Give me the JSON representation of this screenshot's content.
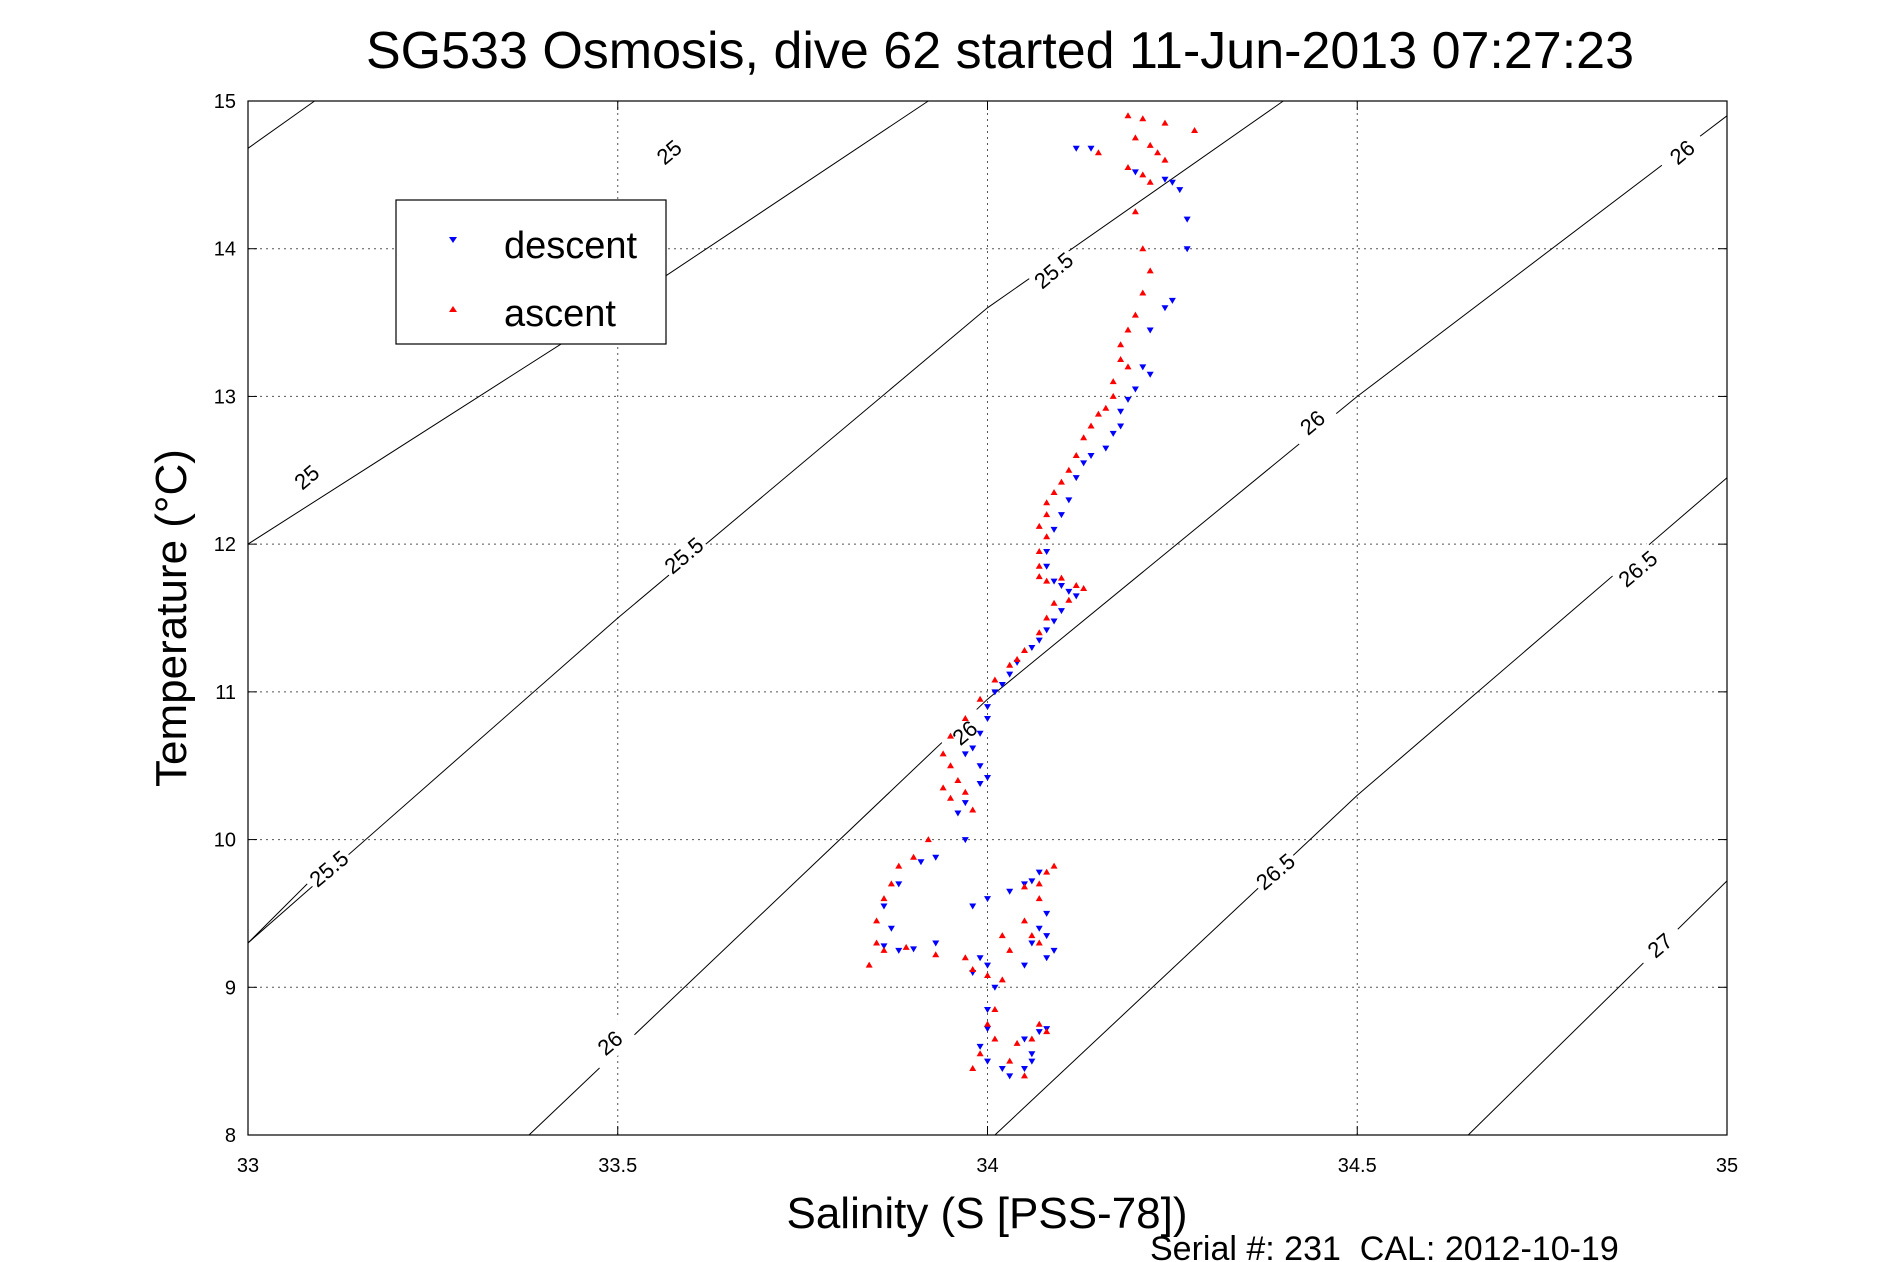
{
  "chart_data": {
    "type": "scatter",
    "title": "SG533 Osmosis, dive 62 started 11-Jun-2013 07:27:23",
    "xlabel": "Salinity (S [PSS-78])",
    "ylabel": "Temperature (°C)",
    "xlim": [
      33,
      35
    ],
    "ylim": [
      8,
      15
    ],
    "xticks": [
      "33",
      "33.5",
      "34",
      "34.5",
      "35"
    ],
    "yticks": [
      "8",
      "9",
      "10",
      "11",
      "12",
      "13",
      "14",
      "15"
    ],
    "grid": true,
    "legend_position": "top-left",
    "footer": "Serial #: 231  CAL: 2012-10-19",
    "contours": [
      {
        "label": "25",
        "points": [
          [
            33,
            14.68
          ],
          [
            33.09,
            15
          ]
        ],
        "labels_at": [
          [
            33.57,
            14.65
          ]
        ]
      },
      {
        "label": "25",
        "points": [
          [
            33,
            12.0
          ],
          [
            33.5,
            13.6
          ],
          [
            33.92,
            15
          ]
        ],
        "labels_at": [
          [
            33.08,
            12.45
          ]
        ]
      },
      {
        "label": "25.5",
        "points": [
          [
            33,
            9.3
          ],
          [
            33.5,
            11.5
          ],
          [
            34,
            13.6
          ],
          [
            34.4,
            15
          ]
        ],
        "labels_at": [
          [
            33.59,
            11.92
          ],
          [
            34.09,
            13.85
          ]
        ]
      },
      {
        "label": "25.5",
        "points": [
          [
            33,
            9.3
          ],
          [
            33.08,
            9.7
          ]
        ],
        "labels_at": [
          [
            33.11,
            9.8
          ]
        ]
      },
      {
        "label": "26",
        "points": [
          [
            33.38,
            8
          ],
          [
            34,
            10.95
          ],
          [
            34.5,
            13.0
          ],
          [
            35,
            14.9
          ]
        ],
        "labels_at": [
          [
            33.49,
            8.62
          ],
          [
            33.97,
            10.72
          ],
          [
            34.44,
            12.82
          ],
          [
            34.94,
            14.65
          ]
        ]
      },
      {
        "label": "26.5",
        "points": [
          [
            34.01,
            8
          ],
          [
            34.5,
            10.3
          ],
          [
            35,
            12.45
          ]
        ],
        "labels_at": [
          [
            34.39,
            9.78
          ],
          [
            34.88,
            11.83
          ]
        ]
      },
      {
        "label": "27",
        "points": [
          [
            34.65,
            8
          ],
          [
            35,
            9.72
          ]
        ],
        "labels_at": [
          [
            34.91,
            9.28
          ]
        ]
      }
    ],
    "series": [
      {
        "name": "descent",
        "marker": "triangle-down",
        "color": "#0000ff",
        "points": [
          [
            34.12,
            14.68
          ],
          [
            34.14,
            14.68
          ],
          [
            34.2,
            14.52
          ],
          [
            34.24,
            14.47
          ],
          [
            34.25,
            14.45
          ],
          [
            34.27,
            14.2
          ],
          [
            34.26,
            14.4
          ],
          [
            34.27,
            14.0
          ],
          [
            34.25,
            13.65
          ],
          [
            34.24,
            13.6
          ],
          [
            34.22,
            13.45
          ],
          [
            34.21,
            13.2
          ],
          [
            34.22,
            13.15
          ],
          [
            34.2,
            13.05
          ],
          [
            34.19,
            12.98
          ],
          [
            34.18,
            12.9
          ],
          [
            34.18,
            12.8
          ],
          [
            34.17,
            12.75
          ],
          [
            34.16,
            12.65
          ],
          [
            34.14,
            12.6
          ],
          [
            34.13,
            12.55
          ],
          [
            34.12,
            12.45
          ],
          [
            34.11,
            12.3
          ],
          [
            34.1,
            12.2
          ],
          [
            34.09,
            12.1
          ],
          [
            34.08,
            11.95
          ],
          [
            34.08,
            11.85
          ],
          [
            34.09,
            11.75
          ],
          [
            34.1,
            11.72
          ],
          [
            34.11,
            11.68
          ],
          [
            34.12,
            11.65
          ],
          [
            34.1,
            11.55
          ],
          [
            34.09,
            11.48
          ],
          [
            34.08,
            11.42
          ],
          [
            34.07,
            11.35
          ],
          [
            34.06,
            11.3
          ],
          [
            34.04,
            11.2
          ],
          [
            34.03,
            11.12
          ],
          [
            34.02,
            11.05
          ],
          [
            34.01,
            11.0
          ],
          [
            34.0,
            10.9
          ],
          [
            34.0,
            10.82
          ],
          [
            33.99,
            10.72
          ],
          [
            33.98,
            10.62
          ],
          [
            33.97,
            10.58
          ],
          [
            33.99,
            10.5
          ],
          [
            34.0,
            10.42
          ],
          [
            33.99,
            10.38
          ],
          [
            33.97,
            10.25
          ],
          [
            33.96,
            10.18
          ],
          [
            33.97,
            10.0
          ],
          [
            33.93,
            9.88
          ],
          [
            33.91,
            9.85
          ],
          [
            33.88,
            9.7
          ],
          [
            33.86,
            9.55
          ],
          [
            33.87,
            9.4
          ],
          [
            33.86,
            9.28
          ],
          [
            33.88,
            9.25
          ],
          [
            33.9,
            9.26
          ],
          [
            33.93,
            9.3
          ],
          [
            33.98,
            9.55
          ],
          [
            34.0,
            9.6
          ],
          [
            34.03,
            9.65
          ],
          [
            34.05,
            9.7
          ],
          [
            34.06,
            9.72
          ],
          [
            34.07,
            9.78
          ],
          [
            34.08,
            9.5
          ],
          [
            34.07,
            9.4
          ],
          [
            34.06,
            9.3
          ],
          [
            34.08,
            9.35
          ],
          [
            34.09,
            9.25
          ],
          [
            34.08,
            9.2
          ],
          [
            34.05,
            9.15
          ],
          [
            34.0,
            9.15
          ],
          [
            33.99,
            9.2
          ],
          [
            33.98,
            9.1
          ],
          [
            34.01,
            9.0
          ],
          [
            34.0,
            8.85
          ],
          [
            34.0,
            8.72
          ],
          [
            33.99,
            8.6
          ],
          [
            34.0,
            8.5
          ],
          [
            34.02,
            8.45
          ],
          [
            34.03,
            8.4
          ],
          [
            34.05,
            8.45
          ],
          [
            34.06,
            8.55
          ],
          [
            34.05,
            8.65
          ],
          [
            34.07,
            8.7
          ],
          [
            34.08,
            8.72
          ],
          [
            34.06,
            8.5
          ]
        ]
      },
      {
        "name": "ascent",
        "marker": "triangle-up",
        "color": "#ff0000",
        "points": [
          [
            34.19,
            14.9
          ],
          [
            34.21,
            14.88
          ],
          [
            34.24,
            14.85
          ],
          [
            34.28,
            14.8
          ],
          [
            34.2,
            14.75
          ],
          [
            34.22,
            14.7
          ],
          [
            34.23,
            14.65
          ],
          [
            34.24,
            14.6
          ],
          [
            34.15,
            14.65
          ],
          [
            34.19,
            14.55
          ],
          [
            34.21,
            14.5
          ],
          [
            34.22,
            14.45
          ],
          [
            34.2,
            14.25
          ],
          [
            34.21,
            14.0
          ],
          [
            34.22,
            13.85
          ],
          [
            34.21,
            13.7
          ],
          [
            34.2,
            13.55
          ],
          [
            34.19,
            13.45
          ],
          [
            34.18,
            13.35
          ],
          [
            34.18,
            13.25
          ],
          [
            34.19,
            13.2
          ],
          [
            34.17,
            13.1
          ],
          [
            34.17,
            13.0
          ],
          [
            34.16,
            12.92
          ],
          [
            34.15,
            12.88
          ],
          [
            34.14,
            12.8
          ],
          [
            34.13,
            12.72
          ],
          [
            34.12,
            12.6
          ],
          [
            34.11,
            12.5
          ],
          [
            34.1,
            12.42
          ],
          [
            34.09,
            12.35
          ],
          [
            34.08,
            12.28
          ],
          [
            34.08,
            12.2
          ],
          [
            34.07,
            12.12
          ],
          [
            34.08,
            12.05
          ],
          [
            34.07,
            11.95
          ],
          [
            34.07,
            11.85
          ],
          [
            34.07,
            11.78
          ],
          [
            34.08,
            11.75
          ],
          [
            34.1,
            11.77
          ],
          [
            34.12,
            11.72
          ],
          [
            34.13,
            11.7
          ],
          [
            34.11,
            11.62
          ],
          [
            34.09,
            11.6
          ],
          [
            34.08,
            11.5
          ],
          [
            34.07,
            11.4
          ],
          [
            34.05,
            11.28
          ],
          [
            34.04,
            11.22
          ],
          [
            34.03,
            11.18
          ],
          [
            34.01,
            11.08
          ],
          [
            33.99,
            10.95
          ],
          [
            33.97,
            10.82
          ],
          [
            33.95,
            10.7
          ],
          [
            33.94,
            10.58
          ],
          [
            33.95,
            10.5
          ],
          [
            33.96,
            10.4
          ],
          [
            33.94,
            10.35
          ],
          [
            33.95,
            10.28
          ],
          [
            33.97,
            10.32
          ],
          [
            33.98,
            10.2
          ],
          [
            33.92,
            10.0
          ],
          [
            33.9,
            9.88
          ],
          [
            33.88,
            9.82
          ],
          [
            33.87,
            9.7
          ],
          [
            33.86,
            9.6
          ],
          [
            33.85,
            9.45
          ],
          [
            33.85,
            9.3
          ],
          [
            33.84,
            9.15
          ],
          [
            33.86,
            9.25
          ],
          [
            33.89,
            9.27
          ],
          [
            33.93,
            9.22
          ],
          [
            33.97,
            9.2
          ],
          [
            33.98,
            9.12
          ],
          [
            34.0,
            9.08
          ],
          [
            34.02,
            9.05
          ],
          [
            34.05,
            9.68
          ],
          [
            34.07,
            9.7
          ],
          [
            34.08,
            9.78
          ],
          [
            34.09,
            9.82
          ],
          [
            34.07,
            9.6
          ],
          [
            34.05,
            9.45
          ],
          [
            34.06,
            9.35
          ],
          [
            34.07,
            9.3
          ],
          [
            34.03,
            9.25
          ],
          [
            34.02,
            9.35
          ],
          [
            34.01,
            8.85
          ],
          [
            34.0,
            8.75
          ],
          [
            34.01,
            8.65
          ],
          [
            33.99,
            8.55
          ],
          [
            33.98,
            8.45
          ],
          [
            34.03,
            8.5
          ],
          [
            34.04,
            8.62
          ],
          [
            34.06,
            8.65
          ],
          [
            34.07,
            8.75
          ],
          [
            34.08,
            8.7
          ],
          [
            34.05,
            8.4
          ]
        ]
      }
    ]
  }
}
